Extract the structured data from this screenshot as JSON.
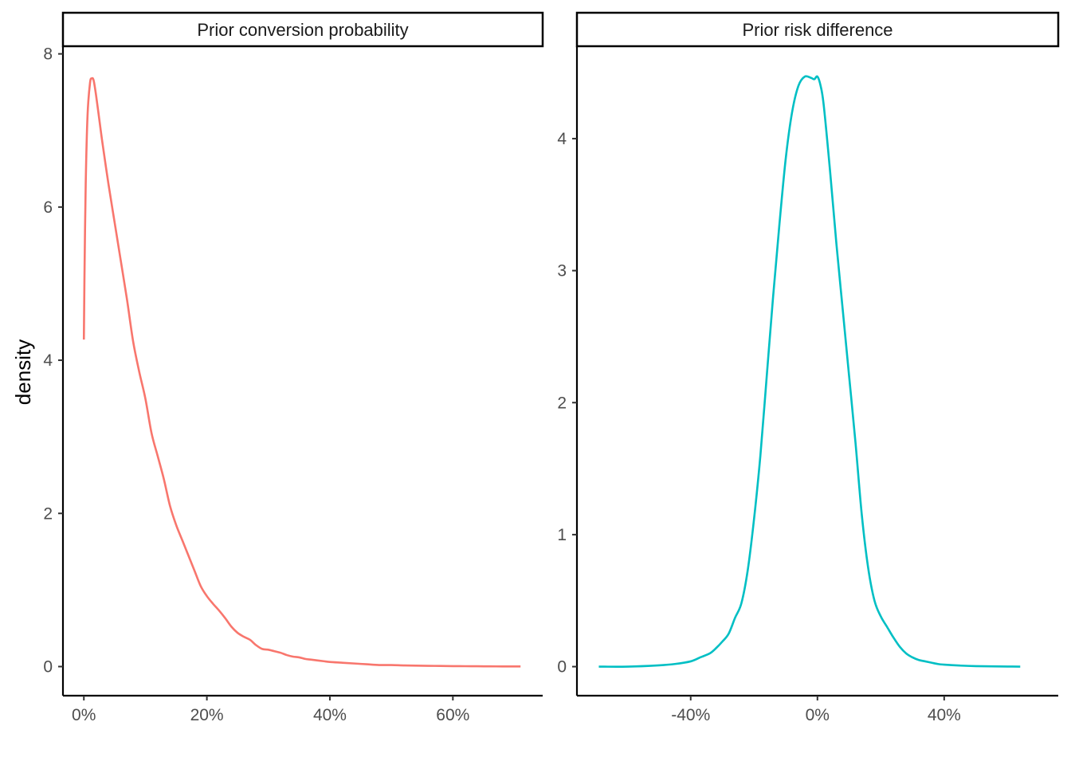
{
  "ylabel": "density",
  "chart_data": [
    {
      "type": "line",
      "title": "Prior conversion probability",
      "xlabel": "",
      "ylabel": "density",
      "color": "#F8766D",
      "x_ticks": [
        0,
        0.2,
        0.4,
        0.6
      ],
      "x_tick_labels": [
        "0%",
        "20%",
        "40%",
        "60%"
      ],
      "y_ticks": [
        0,
        2,
        4,
        6,
        8
      ],
      "y_tick_labels": [
        "0",
        "2",
        "4",
        "6",
        "8"
      ],
      "xlim": [
        -0.034,
        0.746
      ],
      "ylim": [
        -0.38,
        8.1
      ],
      "grid": false,
      "legend": "none",
      "x": [
        0.0,
        0.001,
        0.003,
        0.006,
        0.01,
        0.013,
        0.016,
        0.02,
        0.025,
        0.03,
        0.04,
        0.05,
        0.06,
        0.07,
        0.08,
        0.09,
        0.1,
        0.11,
        0.12,
        0.13,
        0.14,
        0.15,
        0.16,
        0.17,
        0.18,
        0.19,
        0.2,
        0.21,
        0.22,
        0.23,
        0.24,
        0.25,
        0.26,
        0.27,
        0.28,
        0.29,
        0.3,
        0.31,
        0.32,
        0.33,
        0.34,
        0.35,
        0.36,
        0.37,
        0.38,
        0.39,
        0.4,
        0.42,
        0.44,
        0.46,
        0.48,
        0.5,
        0.52,
        0.54,
        0.56,
        0.58,
        0.6,
        0.62,
        0.64,
        0.66,
        0.68,
        0.7,
        0.71
      ],
      "y": [
        4.27,
        5.1,
        6.3,
        7.2,
        7.62,
        7.68,
        7.65,
        7.45,
        7.15,
        6.85,
        6.3,
        5.8,
        5.3,
        4.8,
        4.25,
        3.85,
        3.5,
        3.05,
        2.75,
        2.45,
        2.1,
        1.85,
        1.65,
        1.45,
        1.25,
        1.05,
        0.92,
        0.82,
        0.73,
        0.63,
        0.52,
        0.44,
        0.39,
        0.35,
        0.28,
        0.23,
        0.22,
        0.2,
        0.18,
        0.15,
        0.13,
        0.12,
        0.1,
        0.09,
        0.08,
        0.07,
        0.06,
        0.05,
        0.04,
        0.03,
        0.02,
        0.02,
        0.015,
        0.012,
        0.01,
        0.008,
        0.006,
        0.005,
        0.004,
        0.003,
        0.002,
        0.002,
        0.002
      ]
    },
    {
      "type": "line",
      "title": "Prior risk difference",
      "xlabel": "",
      "ylabel": "",
      "color": "#00BFC4",
      "x_ticks": [
        -0.4,
        0.0,
        0.4
      ],
      "x_tick_labels": [
        "-40%",
        "0%",
        "40%"
      ],
      "y_ticks": [
        0,
        1,
        2,
        3,
        4
      ],
      "y_tick_labels": [
        "0",
        "1",
        "2",
        "3",
        "4"
      ],
      "xlim": [
        -0.759,
        0.76
      ],
      "ylim": [
        -0.22,
        4.7
      ],
      "grid": false,
      "legend": "none",
      "x": [
        -0.69,
        -0.6,
        -0.5,
        -0.45,
        -0.4,
        -0.37,
        -0.34,
        -0.32,
        -0.3,
        -0.28,
        -0.26,
        -0.24,
        -0.22,
        -0.2,
        -0.18,
        -0.16,
        -0.14,
        -0.12,
        -0.1,
        -0.08,
        -0.06,
        -0.04,
        -0.02,
        -0.01,
        0.0,
        0.01,
        0.02,
        0.04,
        0.06,
        0.08,
        0.1,
        0.12,
        0.14,
        0.16,
        0.18,
        0.2,
        0.22,
        0.24,
        0.26,
        0.28,
        0.3,
        0.32,
        0.34,
        0.36,
        0.38,
        0.4,
        0.45,
        0.5,
        0.6,
        0.64
      ],
      "y": [
        0.0,
        0.0,
        0.01,
        0.02,
        0.04,
        0.07,
        0.1,
        0.14,
        0.19,
        0.25,
        0.37,
        0.48,
        0.73,
        1.12,
        1.6,
        2.2,
        2.8,
        3.35,
        3.85,
        4.2,
        4.4,
        4.47,
        4.46,
        4.45,
        4.47,
        4.4,
        4.25,
        3.75,
        3.2,
        2.7,
        2.2,
        1.7,
        1.15,
        0.75,
        0.5,
        0.38,
        0.3,
        0.22,
        0.15,
        0.1,
        0.07,
        0.05,
        0.04,
        0.03,
        0.02,
        0.015,
        0.008,
        0.004,
        0.001,
        0.0
      ]
    }
  ]
}
